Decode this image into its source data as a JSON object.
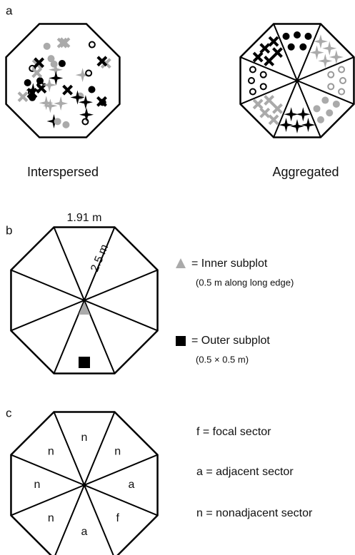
{
  "panels": [
    {
      "label": "a",
      "captions": [
        "Interspersed",
        "Aggregated"
      ]
    },
    {
      "label": "b",
      "edge_label": "1.91 m",
      "radius_label": "2.5 m",
      "legend": [
        {
          "text": "= Inner subplot",
          "note": "(0.5 m along long edge)"
        },
        {
          "text": "= Outer subplot",
          "note": "(0.5 × 0.5 m)"
        }
      ]
    },
    {
      "label": "c",
      "sectors": [
        "n",
        "n",
        "a",
        "f",
        "a",
        "n",
        "n",
        "n"
      ],
      "legend": [
        "f = focal sector",
        "a = adjacent sector",
        "n = nonadjacent sector"
      ]
    }
  ]
}
